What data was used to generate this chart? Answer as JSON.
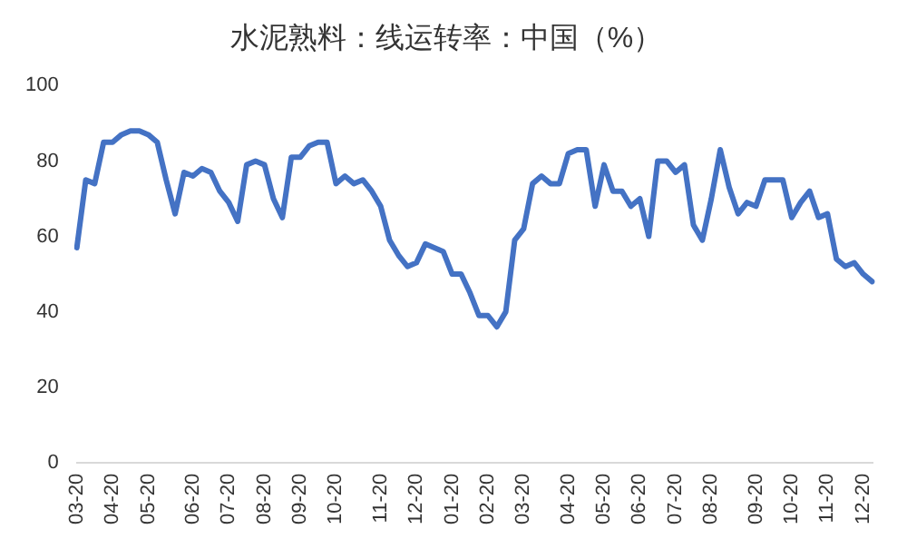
{
  "chart_data": {
    "type": "line",
    "title": "水泥熟料：线运转率：中国（%）",
    "categories": [
      "03-20",
      null,
      null,
      null,
      "04-20",
      null,
      null,
      null,
      "05-20",
      null,
      null,
      null,
      null,
      "06-20",
      null,
      null,
      null,
      "07-20",
      null,
      null,
      null,
      "08-20",
      null,
      null,
      null,
      "09-20",
      null,
      null,
      null,
      "10-20",
      null,
      null,
      null,
      null,
      "11-20",
      null,
      null,
      null,
      "12-20",
      null,
      null,
      null,
      "01-20",
      null,
      null,
      null,
      "02-20",
      null,
      null,
      null,
      "03-20",
      null,
      null,
      null,
      null,
      "04-20",
      null,
      null,
      null,
      "05-20",
      null,
      null,
      null,
      "06-20",
      null,
      null,
      null,
      "07-20",
      null,
      null,
      null,
      "08-20",
      null,
      null,
      null,
      null,
      "09-20",
      null,
      null,
      null,
      "10-20",
      null,
      null,
      null,
      "11-20",
      null,
      null,
      null,
      "12-20",
      null
    ],
    "series": [
      {
        "color": "#4472c4",
        "values": [
          57,
          75,
          74,
          85,
          85,
          87,
          88,
          88,
          87,
          85,
          75,
          66,
          77,
          76,
          78,
          77,
          72,
          69,
          64,
          79,
          80,
          79,
          70,
          65,
          81,
          81,
          84,
          85,
          85,
          74,
          76,
          74,
          75,
          72,
          68,
          59,
          55,
          52,
          53,
          58,
          57,
          56,
          50,
          50,
          45,
          39,
          39,
          36,
          40,
          59,
          62,
          74,
          76,
          74,
          74,
          82,
          83,
          83,
          68,
          79,
          72,
          72,
          68,
          70,
          60,
          80,
          80,
          77,
          79,
          63,
          59,
          70,
          83,
          73,
          66,
          69,
          68,
          75,
          75,
          75,
          65,
          69,
          72,
          65,
          66,
          54,
          52,
          53,
          50,
          48
        ]
      }
    ],
    "ylim": [
      0,
      100
    ],
    "yticks": [
      0,
      20,
      40,
      60,
      80,
      100
    ],
    "grid": false,
    "legend": false,
    "marker": "none",
    "line_style": "solid"
  }
}
